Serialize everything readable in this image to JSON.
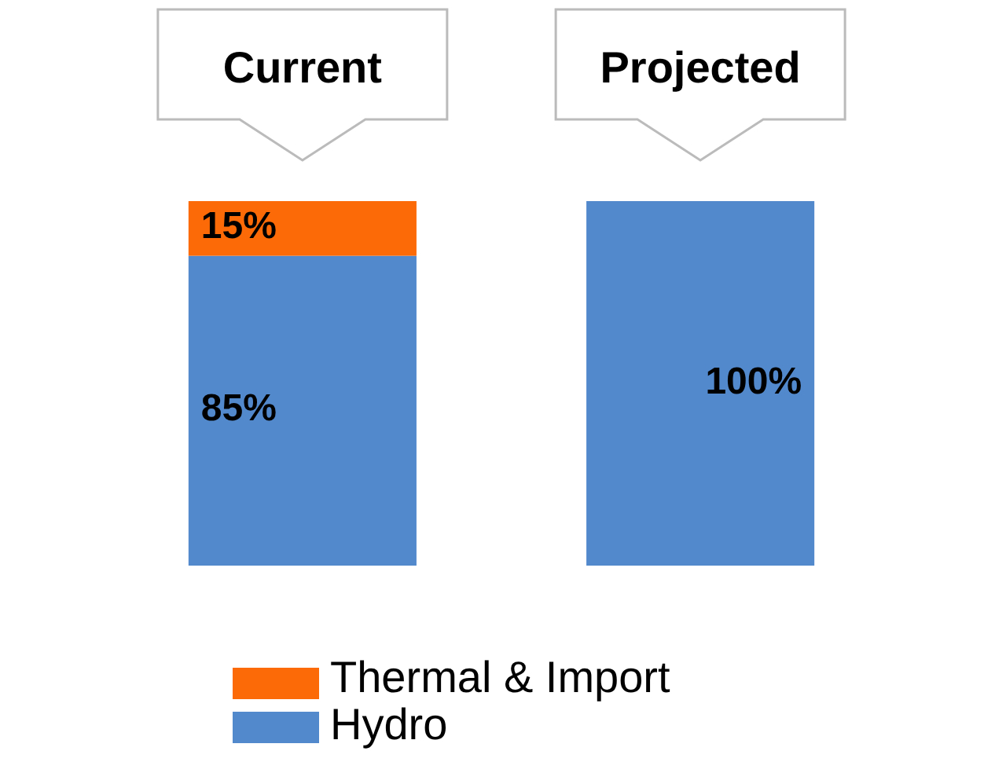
{
  "chart_data": {
    "type": "bar",
    "stacked": true,
    "categories": [
      "Current",
      "Projected"
    ],
    "series": [
      {
        "name": "Hydro",
        "color": "#5288cc",
        "values": [
          85,
          100
        ],
        "value_labels": [
          "85%",
          "100%"
        ]
      },
      {
        "name": "Thermal & Import",
        "color": "#fb6a07",
        "values": [
          15,
          null
        ],
        "value_labels": [
          "15%",
          null
        ]
      }
    ],
    "legend": "bottom"
  }
}
